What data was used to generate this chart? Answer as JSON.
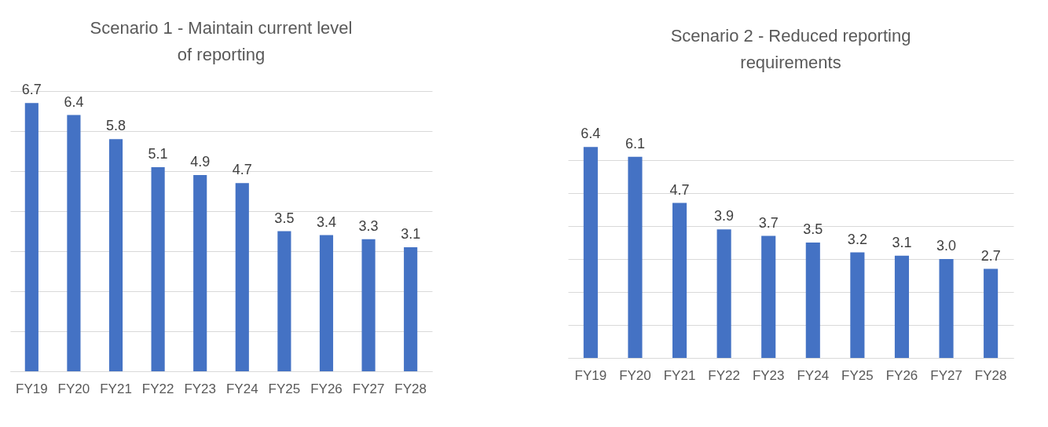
{
  "chart_data": [
    {
      "type": "bar",
      "title": "Scenario 1 - Maintain current level of reporting",
      "categories": [
        "FY19",
        "FY20",
        "FY21",
        "FY22",
        "FY23",
        "FY24",
        "FY25",
        "FY26",
        "FY27",
        "FY28"
      ],
      "values": [
        6.7,
        6.4,
        5.8,
        5.1,
        4.9,
        4.7,
        3.5,
        3.4,
        3.3,
        3.1
      ],
      "value_labels": [
        "6.7",
        "6.4",
        "5.8",
        "5.1",
        "4.9",
        "4.7",
        "3.5",
        "3.4",
        "3.3",
        "3.1"
      ],
      "color": "#4472c4",
      "grid": "y",
      "tick_labels": "x"
    },
    {
      "type": "bar",
      "title": "Scenario 2 - Reduced reporting requirements",
      "categories": [
        "FY19",
        "FY20",
        "FY21",
        "FY22",
        "FY23",
        "FY24",
        "FY25",
        "FY26",
        "FY27",
        "FY28"
      ],
      "values": [
        6.4,
        6.1,
        4.7,
        3.9,
        3.7,
        3.5,
        3.2,
        3.1,
        3.0,
        2.7
      ],
      "value_labels": [
        "6.4",
        "6.1",
        "4.7",
        "3.9",
        "3.7",
        "3.5",
        "3.2",
        "3.1",
        "3.0",
        "2.7"
      ],
      "color": "#4472c4",
      "grid": "y",
      "tick_labels": "x"
    }
  ]
}
